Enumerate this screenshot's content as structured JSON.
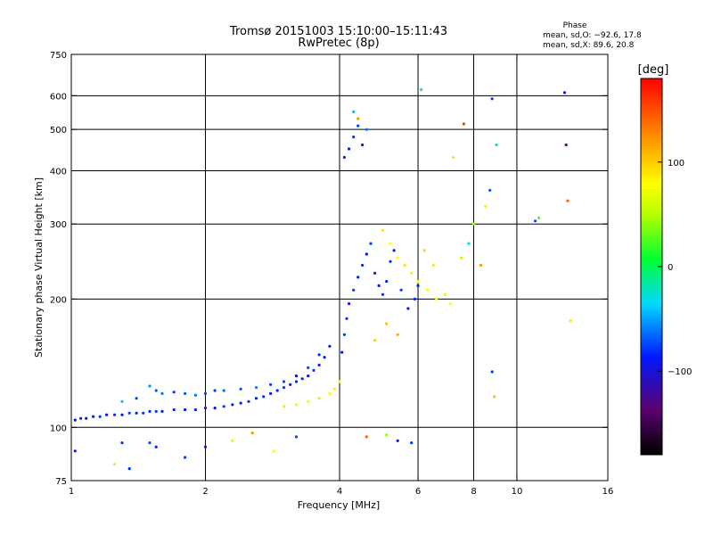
{
  "chart_data": {
    "type": "scatter",
    "title": "Tromsø 20151003 15:10:00–15:11:43",
    "subtitle": "RwPretec (8p)",
    "xlabel": "Frequency [MHz]",
    "ylabel": "Stationary phase Virtual Height [km]",
    "x_scale": "log",
    "y_scale": "log",
    "xlim": [
      1,
      16
    ],
    "ylim": [
      75,
      750
    ],
    "x_ticks": [
      1,
      2,
      4,
      6,
      8,
      10,
      16
    ],
    "y_ticks": [
      75,
      100,
      200,
      300,
      400,
      500,
      600,
      750
    ],
    "x_gridlines": [
      2,
      4,
      6,
      8,
      10
    ],
    "y_gridlines": [
      100,
      200,
      300,
      400,
      500,
      600
    ],
    "grid": true,
    "stats": {
      "heading": "Phase",
      "line_o": "mean, sd,O: −92.6, 17.8",
      "line_x": "mean, sd,X:  89.6, 20.8"
    },
    "colorbar": {
      "label": "[deg]",
      "range": [
        -180,
        180
      ],
      "ticks": [
        100,
        0,
        -100
      ],
      "tick_labels": [
        "100",
        "0",
        "−100"
      ]
    },
    "series": [
      {
        "points": [
          {
            "f": 1.02,
            "h": 104,
            "p": -110
          },
          {
            "f": 1.05,
            "h": 105,
            "p": -105
          },
          {
            "f": 1.08,
            "h": 105,
            "p": -112
          },
          {
            "f": 1.12,
            "h": 106,
            "p": -108
          },
          {
            "f": 1.16,
            "h": 106,
            "p": -100
          },
          {
            "f": 1.2,
            "h": 107,
            "p": -115
          },
          {
            "f": 1.25,
            "h": 107,
            "p": -105
          },
          {
            "f": 1.3,
            "h": 107,
            "p": -110
          },
          {
            "f": 1.35,
            "h": 108,
            "p": -98
          },
          {
            "f": 1.4,
            "h": 108,
            "p": -112
          },
          {
            "f": 1.45,
            "h": 108,
            "p": -105
          },
          {
            "f": 1.5,
            "h": 109,
            "p": -108
          },
          {
            "f": 1.55,
            "h": 109,
            "p": -100
          },
          {
            "f": 1.6,
            "h": 109,
            "p": -110
          },
          {
            "f": 1.7,
            "h": 110,
            "p": -106
          },
          {
            "f": 1.8,
            "h": 110,
            "p": -112
          },
          {
            "f": 1.9,
            "h": 110,
            "p": -104
          },
          {
            "f": 2.0,
            "h": 111,
            "p": -108
          },
          {
            "f": 2.1,
            "h": 111,
            "p": -110
          },
          {
            "f": 2.2,
            "h": 112,
            "p": -100
          },
          {
            "f": 2.3,
            "h": 113,
            "p": -106
          },
          {
            "f": 2.4,
            "h": 114,
            "p": -110
          },
          {
            "f": 2.5,
            "h": 115,
            "p": -104
          },
          {
            "f": 2.6,
            "h": 117,
            "p": -108
          },
          {
            "f": 2.7,
            "h": 118,
            "p": -102
          },
          {
            "f": 2.8,
            "h": 120,
            "p": -110
          },
          {
            "f": 2.9,
            "h": 122,
            "p": -106
          },
          {
            "f": 3.0,
            "h": 124,
            "p": -100
          },
          {
            "f": 3.1,
            "h": 126,
            "p": -112
          },
          {
            "f": 3.2,
            "h": 128,
            "p": -105
          },
          {
            "f": 3.3,
            "h": 130,
            "p": -108
          },
          {
            "f": 3.4,
            "h": 132,
            "p": -110
          },
          {
            "f": 3.5,
            "h": 136,
            "p": -100
          },
          {
            "f": 3.6,
            "h": 140,
            "p": -106
          },
          {
            "f": 3.7,
            "h": 146,
            "p": -112
          },
          {
            "f": 1.3,
            "h": 115,
            "p": -60
          },
          {
            "f": 1.4,
            "h": 117,
            "p": -95
          },
          {
            "f": 1.5,
            "h": 125,
            "p": -70
          },
          {
            "f": 1.55,
            "h": 122,
            "p": -90
          },
          {
            "f": 1.6,
            "h": 120,
            "p": -80
          },
          {
            "f": 1.7,
            "h": 121,
            "p": -100
          },
          {
            "f": 1.8,
            "h": 120,
            "p": -90
          },
          {
            "f": 1.9,
            "h": 119,
            "p": -80
          },
          {
            "f": 2.0,
            "h": 120,
            "p": -95
          },
          {
            "f": 2.1,
            "h": 122,
            "p": -100
          },
          {
            "f": 2.2,
            "h": 122,
            "p": -85
          },
          {
            "f": 2.4,
            "h": 123,
            "p": -95
          },
          {
            "f": 2.6,
            "h": 124,
            "p": -75
          },
          {
            "f": 2.8,
            "h": 126,
            "p": -100
          },
          {
            "f": 3.0,
            "h": 128,
            "p": -95
          },
          {
            "f": 3.2,
            "h": 132,
            "p": -110
          },
          {
            "f": 3.4,
            "h": 138,
            "p": -95
          },
          {
            "f": 3.6,
            "h": 148,
            "p": -100
          },
          {
            "f": 3.8,
            "h": 155,
            "p": -110
          },
          {
            "f": 3.0,
            "h": 112,
            "p": 110
          },
          {
            "f": 3.2,
            "h": 113,
            "p": 105
          },
          {
            "f": 3.4,
            "h": 115,
            "p": 95
          },
          {
            "f": 3.6,
            "h": 117,
            "p": 110
          },
          {
            "f": 3.8,
            "h": 120,
            "p": 100
          },
          {
            "f": 3.9,
            "h": 123,
            "p": 105
          },
          {
            "f": 4.0,
            "h": 128,
            "p": 95
          },
          {
            "f": 4.05,
            "h": 150,
            "p": -110
          },
          {
            "f": 4.1,
            "h": 165,
            "p": -100
          },
          {
            "f": 4.15,
            "h": 180,
            "p": -105
          },
          {
            "f": 4.2,
            "h": 195,
            "p": -110
          },
          {
            "f": 4.3,
            "h": 210,
            "p": -100
          },
          {
            "f": 4.4,
            "h": 225,
            "p": -108
          },
          {
            "f": 4.5,
            "h": 240,
            "p": -104
          },
          {
            "f": 4.6,
            "h": 255,
            "p": -110
          },
          {
            "f": 4.7,
            "h": 270,
            "p": -100
          },
          {
            "f": 4.8,
            "h": 230,
            "p": -106
          },
          {
            "f": 4.9,
            "h": 215,
            "p": -110
          },
          {
            "f": 5.0,
            "h": 205,
            "p": -100
          },
          {
            "f": 5.1,
            "h": 220,
            "p": -108
          },
          {
            "f": 5.2,
            "h": 245,
            "p": -105
          },
          {
            "f": 5.3,
            "h": 260,
            "p": -112
          },
          {
            "f": 5.5,
            "h": 210,
            "p": -100
          },
          {
            "f": 5.7,
            "h": 190,
            "p": -108
          },
          {
            "f": 5.9,
            "h": 200,
            "p": -104
          },
          {
            "f": 6.0,
            "h": 215,
            "p": -110
          },
          {
            "f": 4.1,
            "h": 430,
            "p": -105
          },
          {
            "f": 4.2,
            "h": 450,
            "p": -110
          },
          {
            "f": 4.3,
            "h": 480,
            "p": -100
          },
          {
            "f": 4.4,
            "h": 510,
            "p": -95
          },
          {
            "f": 4.5,
            "h": 460,
            "p": -108
          },
          {
            "f": 4.6,
            "h": 500,
            "p": -80
          },
          {
            "f": 4.3,
            "h": 550,
            "p": -60
          },
          {
            "f": 4.4,
            "h": 530,
            "p": 150
          },
          {
            "f": 5.0,
            "h": 290,
            "p": 110
          },
          {
            "f": 5.2,
            "h": 270,
            "p": 100
          },
          {
            "f": 5.4,
            "h": 250,
            "p": 95
          },
          {
            "f": 5.6,
            "h": 240,
            "p": 110
          },
          {
            "f": 5.8,
            "h": 230,
            "p": 105
          },
          {
            "f": 6.0,
            "h": 220,
            "p": 100
          },
          {
            "f": 6.3,
            "h": 210,
            "p": 95
          },
          {
            "f": 6.6,
            "h": 200,
            "p": 105
          },
          {
            "f": 6.9,
            "h": 205,
            "p": 110
          },
          {
            "f": 7.1,
            "h": 195,
            "p": 100
          },
          {
            "f": 6.5,
            "h": 240,
            "p": 80
          },
          {
            "f": 6.2,
            "h": 260,
            "p": 120
          },
          {
            "f": 5.1,
            "h": 175,
            "p": 130
          },
          {
            "f": 5.4,
            "h": 165,
            "p": 140
          },
          {
            "f": 4.8,
            "h": 160,
            "p": 120
          },
          {
            "f": 7.5,
            "h": 250,
            "p": 60
          },
          {
            "f": 7.8,
            "h": 270,
            "p": -40
          },
          {
            "f": 8.0,
            "h": 300,
            "p": 40
          },
          {
            "f": 8.3,
            "h": 240,
            "p": 150
          },
          {
            "f": 8.5,
            "h": 330,
            "p": 80
          },
          {
            "f": 8.7,
            "h": 360,
            "p": -90
          },
          {
            "f": 9.0,
            "h": 460,
            "p": -30
          },
          {
            "f": 8.8,
            "h": 590,
            "p": -100
          },
          {
            "f": 7.6,
            "h": 515,
            "p": 170
          },
          {
            "f": 7.2,
            "h": 430,
            "p": 110
          },
          {
            "f": 6.1,
            "h": 620,
            "p": -20
          },
          {
            "f": 11.0,
            "h": 305,
            "p": -95
          },
          {
            "f": 11.2,
            "h": 310,
            "p": 20
          },
          {
            "f": 12.8,
            "h": 610,
            "p": -130
          },
          {
            "f": 12.9,
            "h": 460,
            "p": -150
          },
          {
            "f": 13.0,
            "h": 340,
            "p": 160
          },
          {
            "f": 13.2,
            "h": 178,
            "p": 110
          },
          {
            "f": 8.8,
            "h": 135,
            "p": -100
          },
          {
            "f": 8.9,
            "h": 118,
            "p": 130
          },
          {
            "f": 1.02,
            "h": 88,
            "p": -110
          },
          {
            "f": 1.25,
            "h": 82,
            "p": 110
          },
          {
            "f": 1.3,
            "h": 92,
            "p": -100
          },
          {
            "f": 1.5,
            "h": 92,
            "p": -95
          },
          {
            "f": 1.55,
            "h": 90,
            "p": -110
          },
          {
            "f": 1.35,
            "h": 80,
            "p": -105
          },
          {
            "f": 1.8,
            "h": 85,
            "p": -100
          },
          {
            "f": 2.0,
            "h": 90,
            "p": -110
          },
          {
            "f": 2.3,
            "h": 93,
            "p": 110
          },
          {
            "f": 2.55,
            "h": 97,
            "p": 150
          },
          {
            "f": 2.85,
            "h": 88,
            "p": 100
          },
          {
            "f": 3.2,
            "h": 95,
            "p": -95
          },
          {
            "f": 4.6,
            "h": 95,
            "p": 160
          },
          {
            "f": 5.1,
            "h": 96,
            "p": 40
          },
          {
            "f": 5.4,
            "h": 93,
            "p": -120
          },
          {
            "f": 5.8,
            "h": 92,
            "p": -100
          }
        ]
      }
    ]
  }
}
